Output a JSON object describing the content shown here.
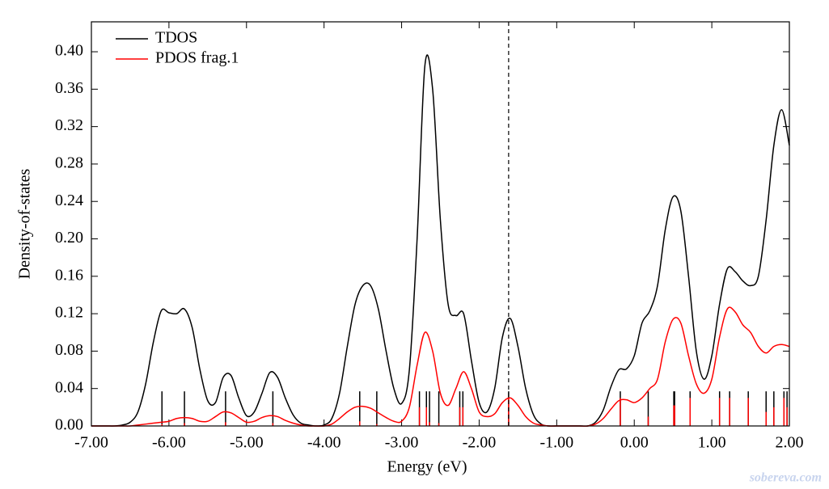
{
  "chart_data": {
    "type": "line",
    "xlabel": "Energy (eV)",
    "ylabel": "Density-of-states",
    "watermark": "sobereva.com",
    "x": [
      -7.0,
      -6.9,
      -6.8,
      -6.7,
      -6.6,
      -6.5,
      -6.4,
      -6.3,
      -6.2,
      -6.1,
      -6.0,
      -5.9,
      -5.8,
      -5.7,
      -5.6,
      -5.5,
      -5.4,
      -5.3,
      -5.2,
      -5.1,
      -5.0,
      -4.9,
      -4.8,
      -4.7,
      -4.6,
      -4.5,
      -4.4,
      -4.3,
      -4.2,
      -4.1,
      -4.0,
      -3.9,
      -3.8,
      -3.7,
      -3.6,
      -3.5,
      -3.4,
      -3.3,
      -3.2,
      -3.1,
      -3.0,
      -2.9,
      -2.8,
      -2.7,
      -2.6,
      -2.5,
      -2.4,
      -2.3,
      -2.2,
      -2.1,
      -2.0,
      -1.9,
      -1.8,
      -1.7,
      -1.6,
      -1.5,
      -1.4,
      -1.3,
      -1.2,
      -1.1,
      -1.0,
      -0.9,
      -0.8,
      -0.7,
      -0.6,
      -0.5,
      -0.4,
      -0.3,
      -0.2,
      -0.1,
      0.0,
      0.1,
      0.2,
      0.3,
      0.4,
      0.5,
      0.6,
      0.7,
      0.8,
      0.9,
      1.0,
      1.1,
      1.2,
      1.3,
      1.4,
      1.5,
      1.6,
      1.7,
      1.8,
      1.9,
      2.0
    ],
    "series": [
      {
        "name": "TDOS",
        "color": "#000000",
        "values": [
          0,
          0,
          0,
          0,
          0.001,
          0.004,
          0.015,
          0.045,
          0.09,
          0.123,
          0.121,
          0.12,
          0.125,
          0.105,
          0.06,
          0.027,
          0.025,
          0.052,
          0.054,
          0.03,
          0.011,
          0.015,
          0.035,
          0.057,
          0.052,
          0.03,
          0.012,
          0.003,
          0.001,
          0,
          0.001,
          0.008,
          0.035,
          0.085,
          0.13,
          0.15,
          0.15,
          0.125,
          0.08,
          0.04,
          0.024,
          0.06,
          0.2,
          0.385,
          0.36,
          0.22,
          0.13,
          0.118,
          0.12,
          0.07,
          0.025,
          0.015,
          0.04,
          0.095,
          0.115,
          0.085,
          0.04,
          0.012,
          0.002,
          0,
          0,
          0,
          0,
          0,
          0,
          0.004,
          0.017,
          0.042,
          0.06,
          0.061,
          0.075,
          0.11,
          0.123,
          0.15,
          0.21,
          0.245,
          0.23,
          0.16,
          0.08,
          0.05,
          0.075,
          0.13,
          0.168,
          0.165,
          0.155,
          0.15,
          0.16,
          0.22,
          0.3,
          0.338,
          0.3
        ]
      },
      {
        "name": "PDOS frag.1",
        "color": "#ff0000",
        "values": [
          0,
          0,
          0,
          0,
          0,
          0,
          0.001,
          0.002,
          0.003,
          0.004,
          0.005,
          0.008,
          0.009,
          0.008,
          0.005,
          0.005,
          0.01,
          0.015,
          0.014,
          0.009,
          0.004,
          0.005,
          0.009,
          0.011,
          0.01,
          0.006,
          0.003,
          0.001,
          0,
          0,
          0,
          0.002,
          0.008,
          0.015,
          0.02,
          0.021,
          0.019,
          0.014,
          0.009,
          0.005,
          0.005,
          0.02,
          0.065,
          0.1,
          0.08,
          0.035,
          0.022,
          0.04,
          0.058,
          0.04,
          0.015,
          0.01,
          0.013,
          0.025,
          0.03,
          0.022,
          0.01,
          0.003,
          0.001,
          0,
          0,
          0,
          0,
          0,
          0,
          0.002,
          0.008,
          0.018,
          0.027,
          0.028,
          0.025,
          0.03,
          0.04,
          0.05,
          0.09,
          0.114,
          0.11,
          0.075,
          0.045,
          0.035,
          0.05,
          0.095,
          0.125,
          0.122,
          0.108,
          0.1,
          0.085,
          0.078,
          0.085,
          0.087,
          0.085
        ]
      }
    ],
    "sticks": {
      "x": [
        -6.09,
        -5.8,
        -5.27,
        -4.66,
        -3.54,
        -3.32,
        -2.77,
        -2.68,
        -2.64,
        -2.52,
        -2.25,
        -2.21,
        -1.62,
        -0.18,
        0.18,
        0.51,
        0.52,
        0.72,
        1.1,
        1.23,
        1.47,
        1.7,
        1.8,
        1.93,
        1.97
      ],
      "series": [
        {
          "color": "#000000",
          "values": [
            0.037,
            0.037,
            0.037,
            0.037,
            0.037,
            0.037,
            0.037,
            0.037,
            0.037,
            0.037,
            0.037,
            0.037,
            0.037,
            0.037,
            0.037,
            0.037,
            0.037,
            0.037,
            0.037,
            0.037,
            0.037,
            0.037,
            0.037,
            0.037,
            0.037
          ]
        },
        {
          "color": "#ff0000",
          "values": [
            0.002,
            0.003,
            0.004,
            0.003,
            0.005,
            0.002,
            0.02,
            0.02,
            0.004,
            0.003,
            0.02,
            0.02,
            0.03,
            0.03,
            0.01,
            0.022,
            0.022,
            0.03,
            0.03,
            0.03,
            0.03,
            0.015,
            0.02,
            0.03,
            0.02
          ]
        }
      ]
    },
    "vline": {
      "x": -1.62,
      "style": "dashed"
    },
    "legend": "upper-left",
    "xlim": [
      -7,
      2
    ],
    "ylim": [
      0,
      0.432
    ],
    "xticks": [
      {
        "value": -7,
        "label": "-7.00"
      },
      {
        "value": -6,
        "label": "-6.00"
      },
      {
        "value": -5,
        "label": "-5.00"
      },
      {
        "value": -4,
        "label": "-4.00"
      },
      {
        "value": -3,
        "label": "-3.00"
      },
      {
        "value": -2,
        "label": "-2.00"
      },
      {
        "value": -1,
        "label": "-1.00"
      },
      {
        "value": 0,
        "label": "0.00"
      },
      {
        "value": 1,
        "label": "1.00"
      },
      {
        "value": 2,
        "label": "2.00"
      }
    ],
    "yticks": [
      {
        "value": 0,
        "label": "0.00"
      },
      {
        "value": 0.04,
        "label": "0.04"
      },
      {
        "value": 0.08,
        "label": "0.08"
      },
      {
        "value": 0.12,
        "label": "0.12"
      },
      {
        "value": 0.16,
        "label": "0.16"
      },
      {
        "value": 0.2,
        "label": "0.20"
      },
      {
        "value": 0.24,
        "label": "0.24"
      },
      {
        "value": 0.28,
        "label": "0.28"
      },
      {
        "value": 0.32,
        "label": "0.32"
      },
      {
        "value": 0.36,
        "label": "0.36"
      },
      {
        "value": 0.4,
        "label": "0.40"
      }
    ]
  }
}
